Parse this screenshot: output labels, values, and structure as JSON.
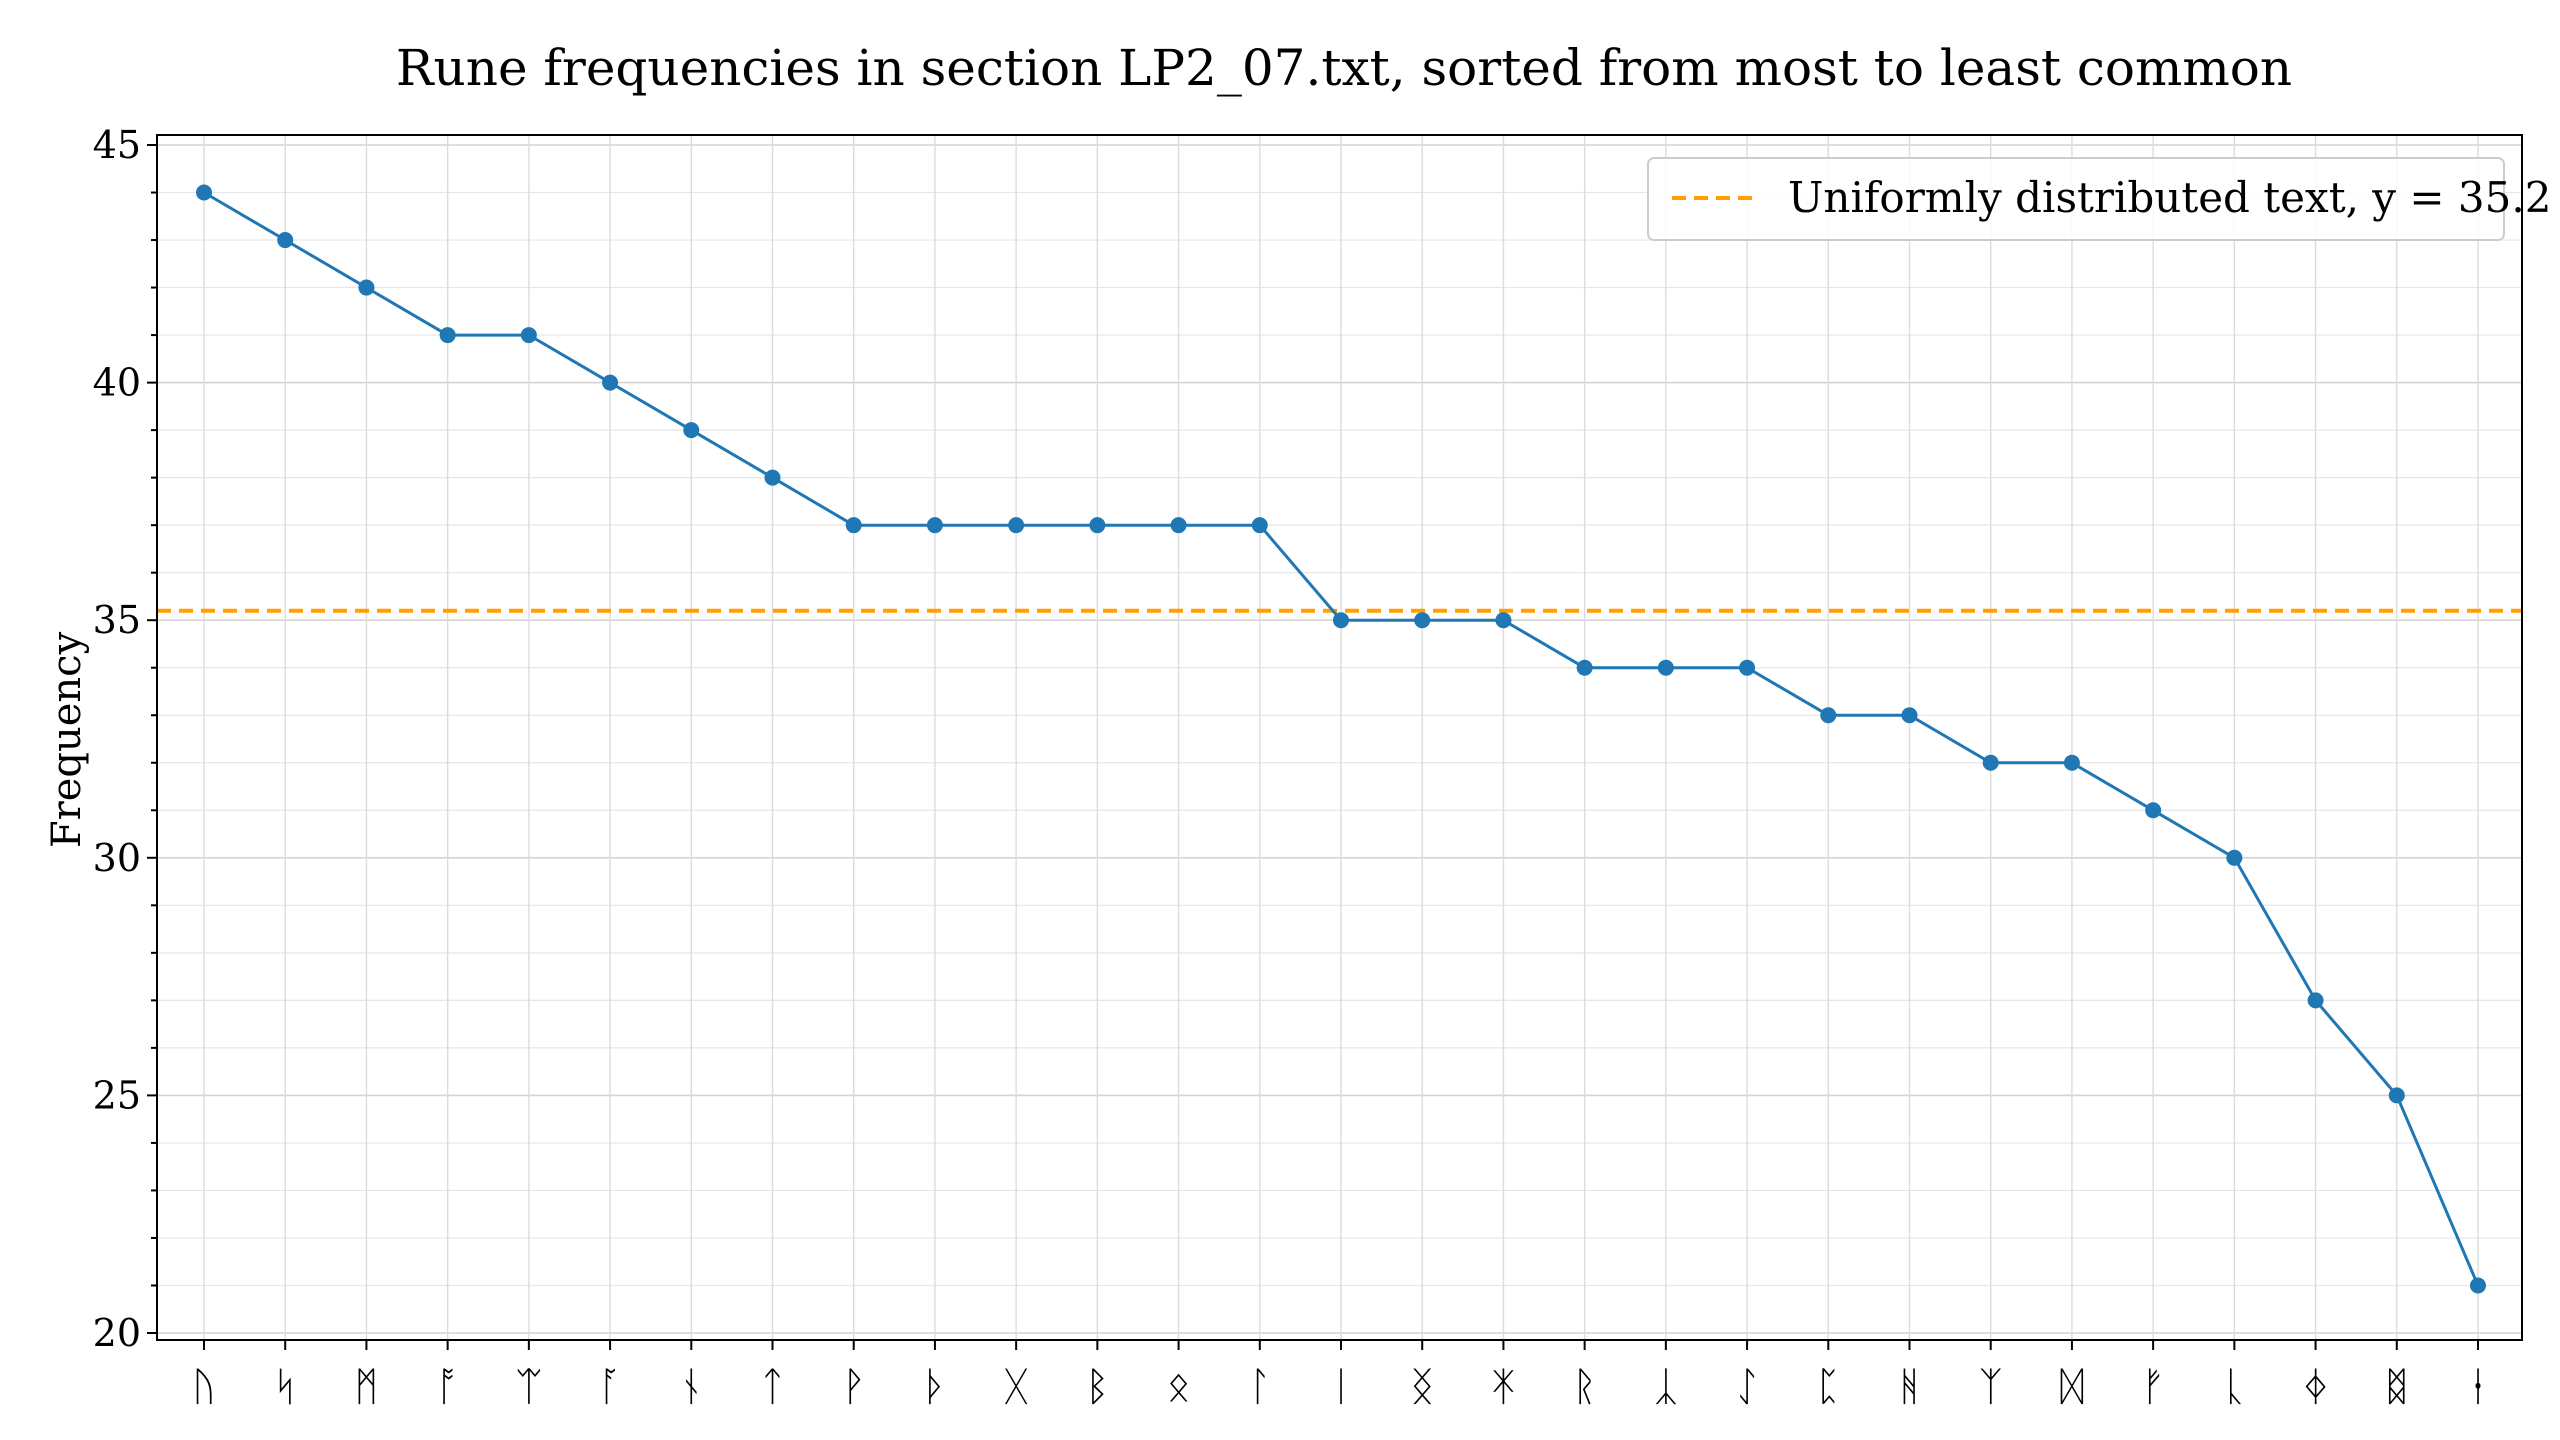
{
  "chart_data": {
    "type": "line",
    "title": "Rune frequencies in section LP2_07.txt, sorted from most to least common",
    "xlabel": "",
    "ylabel": "Frequency",
    "ylim": [
      20,
      45
    ],
    "yticks": [
      "20",
      "25",
      "30",
      "35",
      "40",
      "45"
    ],
    "categories": [
      "ᚢ",
      "ᛋ",
      "ᛗ",
      "ᚩ",
      "ᛠ",
      "ᚪ",
      "ᚾ",
      "ᛏ",
      "ᚹ",
      "ᚦ",
      "ᚷ",
      "ᛒ",
      "ᛟ",
      "ᛚ",
      "ᛁ",
      "ᛝ",
      "ᛡ",
      "ᚱ",
      "ᛣ",
      "ᛇ",
      "ᛈ",
      "ᚻ",
      "ᛉ",
      "ᛞ",
      "ᚠ",
      "ᚳ",
      "ᛄ",
      "ᛥ",
      "ᛂ"
    ],
    "series": [
      {
        "values": [
          44,
          43,
          42,
          41,
          41,
          40,
          39,
          38,
          37,
          37,
          37,
          37,
          37,
          37,
          35,
          35,
          35,
          34,
          34,
          34,
          33,
          33,
          32,
          32,
          31,
          30,
          27,
          25,
          21
        ],
        "color": "#1f77b4"
      }
    ],
    "reference_line": {
      "y": 35.2,
      "label": "Uniformly distributed text, y = 35.2",
      "color": "#ff9f00",
      "style": "dashed"
    },
    "grid": true,
    "minor_grid": true,
    "legend_position": "top-right"
  }
}
